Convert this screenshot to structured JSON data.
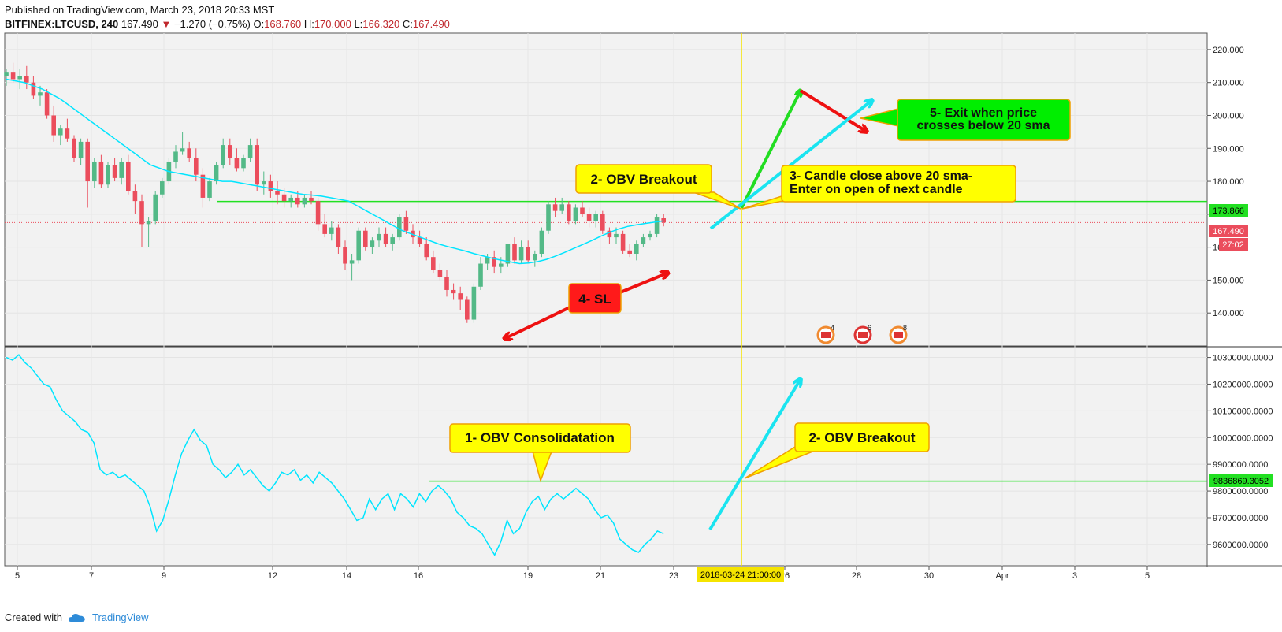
{
  "header": {
    "published": "Published on TradingView.com, March 23, 2018 20:33 MST",
    "symbol": "BITFINEX:LTCUSD, 240",
    "last": "167.490",
    "change_arrow": "▼",
    "change": "−1.270 (−0.75%)",
    "open_label": "O:",
    "open": "168.760",
    "high_label": "H:",
    "high": "170.000",
    "low_label": "L:",
    "low": "166.320",
    "close_label": "C:",
    "close": "167.490"
  },
  "footer": {
    "created_with": "Created with",
    "brand": "TradingView",
    "logo_icon": "tradingview-cloud-icon"
  },
  "colors": {
    "up": "#53b987",
    "down": "#eb4d5c",
    "sma": "#00e5ff",
    "level": "#22e022",
    "vline": "#f5e400",
    "note_yellow": "#ffff00",
    "note_green": "#00ee00",
    "note_red": "#ff1a1a"
  },
  "chart_data": [
    {
      "type": "candlestick",
      "ylim": [
        130,
        225
      ],
      "y_ticks": [
        "220.000",
        "210.000",
        "200.000",
        "190.000",
        "180.000",
        "170.000",
        "160.000",
        "150.000",
        "140.000"
      ],
      "level": 173.866,
      "level_label": "173.866",
      "last_price": 167.49,
      "last_label": "167.490",
      "countdown": "27:02",
      "candles": [
        {
          "o": 212,
          "h": 214,
          "l": 209,
          "c": 213
        },
        {
          "o": 213,
          "h": 216,
          "l": 210,
          "c": 211
        },
        {
          "o": 211,
          "h": 214,
          "l": 208,
          "c": 212
        },
        {
          "o": 212,
          "h": 215,
          "l": 208,
          "c": 210
        },
        {
          "o": 210,
          "h": 212,
          "l": 205,
          "c": 206
        },
        {
          "o": 206,
          "h": 209,
          "l": 203,
          "c": 207
        },
        {
          "o": 207,
          "h": 208,
          "l": 199,
          "c": 200
        },
        {
          "o": 200,
          "h": 203,
          "l": 192,
          "c": 194
        },
        {
          "o": 194,
          "h": 197,
          "l": 191,
          "c": 196
        },
        {
          "o": 196,
          "h": 199,
          "l": 192,
          "c": 193
        },
        {
          "o": 193,
          "h": 194,
          "l": 186,
          "c": 187
        },
        {
          "o": 187,
          "h": 193,
          "l": 185,
          "c": 192
        },
        {
          "o": 192,
          "h": 193,
          "l": 172,
          "c": 180
        },
        {
          "o": 180,
          "h": 187,
          "l": 178,
          "c": 186
        },
        {
          "o": 186,
          "h": 188,
          "l": 178,
          "c": 179
        },
        {
          "o": 179,
          "h": 186,
          "l": 178,
          "c": 185
        },
        {
          "o": 185,
          "h": 187,
          "l": 180,
          "c": 181
        },
        {
          "o": 181,
          "h": 187,
          "l": 179,
          "c": 186
        },
        {
          "o": 186,
          "h": 188,
          "l": 176,
          "c": 177
        },
        {
          "o": 177,
          "h": 179,
          "l": 170,
          "c": 174
        },
        {
          "o": 174,
          "h": 176,
          "l": 160,
          "c": 167
        },
        {
          "o": 167,
          "h": 169,
          "l": 160,
          "c": 168
        },
        {
          "o": 168,
          "h": 177,
          "l": 167,
          "c": 176
        },
        {
          "o": 176,
          "h": 181,
          "l": 175,
          "c": 180
        },
        {
          "o": 180,
          "h": 187,
          "l": 179,
          "c": 186
        },
        {
          "o": 186,
          "h": 191,
          "l": 184,
          "c": 189
        },
        {
          "o": 189,
          "h": 195,
          "l": 188,
          "c": 190
        },
        {
          "o": 190,
          "h": 192,
          "l": 186,
          "c": 187
        },
        {
          "o": 187,
          "h": 190,
          "l": 180,
          "c": 182
        },
        {
          "o": 182,
          "h": 184,
          "l": 172,
          "c": 175
        },
        {
          "o": 175,
          "h": 181,
          "l": 174,
          "c": 180
        },
        {
          "o": 180,
          "h": 186,
          "l": 179,
          "c": 185
        },
        {
          "o": 185,
          "h": 193,
          "l": 184,
          "c": 191
        },
        {
          "o": 191,
          "h": 193,
          "l": 185,
          "c": 187
        },
        {
          "o": 187,
          "h": 190,
          "l": 183,
          "c": 184
        },
        {
          "o": 184,
          "h": 188,
          "l": 183,
          "c": 187
        },
        {
          "o": 187,
          "h": 193,
          "l": 186,
          "c": 191
        },
        {
          "o": 191,
          "h": 193,
          "l": 177,
          "c": 179
        },
        {
          "o": 179,
          "h": 183,
          "l": 176,
          "c": 180
        },
        {
          "o": 180,
          "h": 182,
          "l": 175,
          "c": 177
        },
        {
          "o": 177,
          "h": 180,
          "l": 173,
          "c": 176
        },
        {
          "o": 176,
          "h": 178,
          "l": 172,
          "c": 174
        },
        {
          "o": 174,
          "h": 176,
          "l": 172,
          "c": 175
        },
        {
          "o": 175,
          "h": 177,
          "l": 172,
          "c": 173
        },
        {
          "o": 173,
          "h": 176,
          "l": 172,
          "c": 175
        },
        {
          "o": 175,
          "h": 177,
          "l": 173,
          "c": 174
        },
        {
          "o": 174,
          "h": 175,
          "l": 165,
          "c": 167
        },
        {
          "o": 167,
          "h": 170,
          "l": 163,
          "c": 164
        },
        {
          "o": 164,
          "h": 168,
          "l": 162,
          "c": 166
        },
        {
          "o": 166,
          "h": 167,
          "l": 158,
          "c": 160
        },
        {
          "o": 160,
          "h": 162,
          "l": 153,
          "c": 155
        },
        {
          "o": 155,
          "h": 158,
          "l": 150,
          "c": 156
        },
        {
          "o": 156,
          "h": 166,
          "l": 155,
          "c": 165
        },
        {
          "o": 165,
          "h": 166,
          "l": 159,
          "c": 160
        },
        {
          "o": 160,
          "h": 163,
          "l": 158,
          "c": 162
        },
        {
          "o": 162,
          "h": 166,
          "l": 160,
          "c": 164
        },
        {
          "o": 164,
          "h": 166,
          "l": 160,
          "c": 161
        },
        {
          "o": 161,
          "h": 164,
          "l": 159,
          "c": 163
        },
        {
          "o": 163,
          "h": 170,
          "l": 162,
          "c": 169
        },
        {
          "o": 169,
          "h": 171,
          "l": 164,
          "c": 165
        },
        {
          "o": 165,
          "h": 167,
          "l": 161,
          "c": 163
        },
        {
          "o": 163,
          "h": 165,
          "l": 160,
          "c": 161
        },
        {
          "o": 161,
          "h": 163,
          "l": 156,
          "c": 157
        },
        {
          "o": 157,
          "h": 159,
          "l": 152,
          "c": 153
        },
        {
          "o": 153,
          "h": 155,
          "l": 150,
          "c": 151
        },
        {
          "o": 151,
          "h": 153,
          "l": 145,
          "c": 147
        },
        {
          "o": 147,
          "h": 149,
          "l": 144,
          "c": 146
        },
        {
          "o": 146,
          "h": 148,
          "l": 141,
          "c": 144
        },
        {
          "o": 144,
          "h": 145,
          "l": 137,
          "c": 138
        },
        {
          "o": 138,
          "h": 149,
          "l": 137,
          "c": 148
        },
        {
          "o": 148,
          "h": 157,
          "l": 147,
          "c": 155
        },
        {
          "o": 155,
          "h": 158,
          "l": 153,
          "c": 157
        },
        {
          "o": 157,
          "h": 159,
          "l": 152,
          "c": 154
        },
        {
          "o": 154,
          "h": 157,
          "l": 152,
          "c": 155
        },
        {
          "o": 155,
          "h": 161,
          "l": 154,
          "c": 161
        },
        {
          "o": 161,
          "h": 163,
          "l": 155,
          "c": 156
        },
        {
          "o": 156,
          "h": 162,
          "l": 155,
          "c": 160
        },
        {
          "o": 160,
          "h": 162,
          "l": 155,
          "c": 156
        },
        {
          "o": 156,
          "h": 159,
          "l": 154,
          "c": 158
        },
        {
          "o": 158,
          "h": 166,
          "l": 157,
          "c": 165
        },
        {
          "o": 165,
          "h": 174,
          "l": 164,
          "c": 173
        },
        {
          "o": 173,
          "h": 175,
          "l": 169,
          "c": 171
        },
        {
          "o": 171,
          "h": 175,
          "l": 170,
          "c": 173
        },
        {
          "o": 173,
          "h": 174,
          "l": 167,
          "c": 168
        },
        {
          "o": 168,
          "h": 173,
          "l": 167,
          "c": 172
        },
        {
          "o": 172,
          "h": 174,
          "l": 169,
          "c": 170
        },
        {
          "o": 170,
          "h": 172,
          "l": 166,
          "c": 168
        },
        {
          "o": 168,
          "h": 171,
          "l": 166,
          "c": 170
        },
        {
          "o": 170,
          "h": 171,
          "l": 164,
          "c": 165
        },
        {
          "o": 165,
          "h": 166,
          "l": 161,
          "c": 163
        },
        {
          "o": 163,
          "h": 166,
          "l": 161,
          "c": 164
        },
        {
          "o": 164,
          "h": 165,
          "l": 158,
          "c": 159
        },
        {
          "o": 159,
          "h": 161,
          "l": 157,
          "c": 158
        },
        {
          "o": 158,
          "h": 162,
          "l": 156,
          "c": 161
        },
        {
          "o": 161,
          "h": 164,
          "l": 160,
          "c": 163
        },
        {
          "o": 163,
          "h": 165,
          "l": 162,
          "c": 164
        },
        {
          "o": 164,
          "h": 170,
          "l": 163,
          "c": 169
        },
        {
          "o": 168.76,
          "h": 170,
          "l": 166.32,
          "c": 167.49
        }
      ],
      "sma20": [
        211,
        210.5,
        210,
        209,
        208,
        206.5,
        205,
        203,
        201,
        199,
        197,
        195,
        193,
        191,
        189,
        187,
        185,
        184,
        183,
        182.5,
        182,
        181.5,
        181,
        180.5,
        180,
        180,
        179.5,
        179,
        178.5,
        178,
        177.5,
        177,
        176.5,
        176,
        175.8,
        175.5,
        175,
        174.5,
        174,
        172.5,
        171,
        169.5,
        168,
        166.5,
        165,
        164,
        163,
        162,
        161,
        160.2,
        159.5,
        158.8,
        158,
        157.3,
        156.6,
        156,
        155.5,
        155,
        155.2,
        155.6,
        156.3,
        157.3,
        158.4,
        159.6,
        160.8,
        162,
        163.3,
        164.5,
        165.5,
        166.3,
        166.8,
        167.2,
        167.6,
        168
      ]
    },
    {
      "type": "line",
      "name": "OBV",
      "ylim": [
        9520000,
        10340000
      ],
      "y_ticks": [
        "10300000.0000",
        "10200000.0000",
        "10100000.0000",
        "10000000.0000",
        "9900000.0000",
        "9800000.0000",
        "9700000.0000",
        "9600000.0000"
      ],
      "level": 9836869.3052,
      "level_label": "9836869.3052",
      "values": [
        10300000,
        10290000,
        10310000,
        10280000,
        10260000,
        10230000,
        10200000,
        10190000,
        10140000,
        10100000,
        10080000,
        10060000,
        10030000,
        10020000,
        9980000,
        9880000,
        9860000,
        9870000,
        9850000,
        9860000,
        9840000,
        9820000,
        9800000,
        9740000,
        9650000,
        9690000,
        9770000,
        9860000,
        9940000,
        9990000,
        10030000,
        9990000,
        9970000,
        9900000,
        9880000,
        9850000,
        9870000,
        9900000,
        9860000,
        9880000,
        9850000,
        9820000,
        9800000,
        9830000,
        9870000,
        9860000,
        9880000,
        9840000,
        9860000,
        9830000,
        9870000,
        9850000,
        9830000,
        9800000,
        9770000,
        9730000,
        9690000,
        9700000,
        9770000,
        9730000,
        9770000,
        9790000,
        9730000,
        9790000,
        9770000,
        9740000,
        9790000,
        9760000,
        9800000,
        9820000,
        9800000,
        9770000,
        9720000,
        9700000,
        9670000,
        9660000,
        9640000,
        9600000,
        9560000,
        9610000,
        9690000,
        9640000,
        9660000,
        9720000,
        9760000,
        9780000,
        9730000,
        9770000,
        9790000,
        9770000,
        9790000,
        9810000,
        9790000,
        9770000,
        9730000,
        9700000,
        9710000,
        9680000,
        9620000,
        9600000,
        9580000,
        9570000,
        9600000,
        9620000,
        9650000,
        9640000
      ]
    }
  ],
  "x_axis": {
    "labels": [
      "5",
      "7",
      "9",
      "12",
      "14",
      "16",
      "19",
      "21",
      "23",
      "26",
      "28",
      "30",
      "Apr",
      "3",
      "5"
    ],
    "crosshair_label": "2018-03-24 21:00:00"
  },
  "annotations": {
    "obv_breakout_top": "2- OBV Breakout",
    "candle_close_1": "3- Candle close above 20 sma-",
    "candle_close_2": "Enter on open of next candle",
    "exit_1": "5- Exit when price",
    "exit_2": "crosses below 20 sma",
    "sl": "4- SL",
    "consolidation": "1- OBV Consolidatation",
    "obv_breakout_bottom": "2- OBV Breakout"
  },
  "events": [
    {
      "count": "4",
      "icon": "us-flag-event-icon"
    },
    {
      "count": "6",
      "icon": "us-flag-event-icon"
    },
    {
      "count": "8",
      "icon": "us-flag-event-icon"
    }
  ]
}
